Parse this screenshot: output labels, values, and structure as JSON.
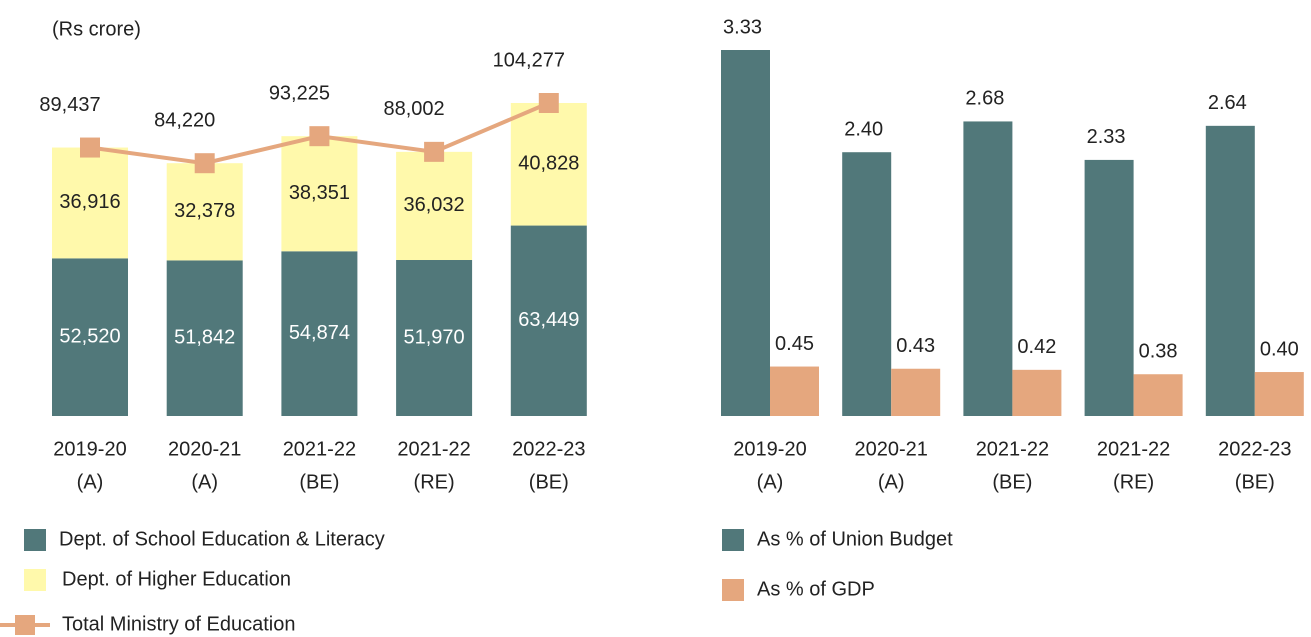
{
  "chart_data": [
    {
      "type": "bar",
      "stacked": true,
      "subtitle": "(Rs crore)",
      "categories": [
        [
          "2019-20",
          "(A)"
        ],
        [
          "2020-21",
          "(A)"
        ],
        [
          "2021-22",
          "(BE)"
        ],
        [
          "2021-22",
          "(RE)"
        ],
        [
          "2022-23",
          "(BE)"
        ]
      ],
      "series": [
        {
          "name": "Dept. of School Education & Literacy",
          "color": "#51787a",
          "values": [
            52520,
            51842,
            54874,
            51970,
            63449
          ],
          "value_labels": [
            "52,520",
            "51,842",
            "54,874",
            "51,970",
            "63,449"
          ]
        },
        {
          "name": "Dept. of Higher Education",
          "color": "#fff9ab",
          "values": [
            36916,
            32378,
            38351,
            36032,
            40828
          ],
          "value_labels": [
            "36,916",
            "32,378",
            "38,351",
            "36,032",
            "40,828"
          ]
        },
        {
          "name": "Total Ministry of Education",
          "type": "line",
          "color": "#e5a77e",
          "values": [
            89437,
            84220,
            93225,
            88002,
            104277
          ],
          "value_labels": [
            "89,437",
            "84,220",
            "93,225",
            "88,002",
            "104,277"
          ]
        }
      ]
    },
    {
      "type": "bar",
      "categories": [
        [
          "2019-20",
          "(A)"
        ],
        [
          "2020-21",
          "(A)"
        ],
        [
          "2021-22",
          "(BE)"
        ],
        [
          "2021-22",
          "(RE)"
        ],
        [
          "2022-23",
          "(BE)"
        ]
      ],
      "series": [
        {
          "name": "As % of Union Budget",
          "color": "#51787a",
          "values": [
            3.33,
            2.4,
            2.68,
            2.33,
            2.64
          ],
          "value_labels": [
            "3.33",
            "2.40",
            "2.68",
            "2.33",
            "2.64"
          ]
        },
        {
          "name": "As % of GDP",
          "color": "#e5a77e",
          "values": [
            0.45,
            0.43,
            0.42,
            0.38,
            0.4
          ],
          "value_labels": [
            "0.45",
            "0.43",
            "0.42",
            "0.38",
            "0.40"
          ]
        }
      ]
    }
  ]
}
